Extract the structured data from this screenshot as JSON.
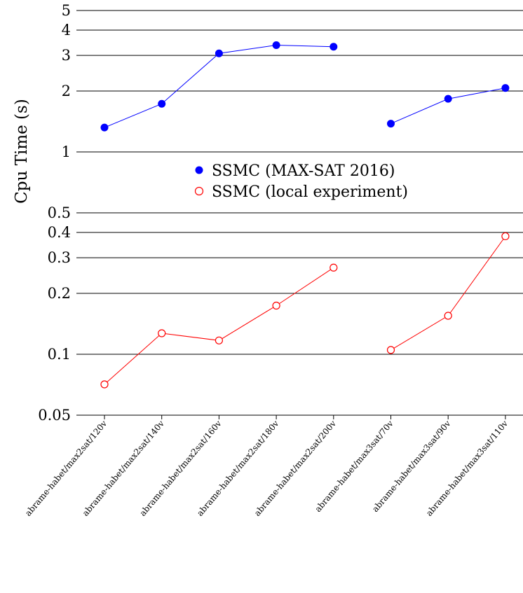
{
  "chart_data": {
    "type": "line",
    "title": "",
    "xlabel": "",
    "ylabel": "Cpu Time (s)",
    "yscale": "log",
    "ylim": [
      0.05,
      5
    ],
    "yticks": [
      {
        "value": 5,
        "label": "5"
      },
      {
        "value": 4,
        "label": "4"
      },
      {
        "value": 3,
        "label": "3"
      },
      {
        "value": 2,
        "label": "2"
      },
      {
        "value": 1,
        "label": "1"
      },
      {
        "value": 0.5,
        "label": "0.5"
      },
      {
        "value": 0.4,
        "label": "0.4"
      },
      {
        "value": 0.3,
        "label": "0.3"
      },
      {
        "value": 0.2,
        "label": "0.2"
      },
      {
        "value": 0.1,
        "label": "0.1"
      },
      {
        "value": 0.05,
        "label": "0.05"
      }
    ],
    "grid": "horizontal lines at y ticks",
    "categories": [
      "abrame-habet/max2sat/120v",
      "abrame-habet/max2sat/140v",
      "abrame-habet/max2sat/160v",
      "abrame-habet/max2sat/180v",
      "abrame-habet/max2sat/200v",
      "abrame-habet/max3sat/70v",
      "abrame-habet/max3sat/90v",
      "abrame-habet/max3sat/110v"
    ],
    "legend_position": "middle-right",
    "series": [
      {
        "name": "SSMC (MAX-SAT 2016)",
        "color": "#0000ff",
        "marker": "filled-circle",
        "segments": [
          [
            0,
            1,
            2,
            3,
            4
          ],
          [
            5,
            6,
            7
          ]
        ],
        "values": [
          1.32,
          1.73,
          3.07,
          3.37,
          3.31,
          1.38,
          1.83,
          2.07
        ]
      },
      {
        "name": "SSMC (local experiment)",
        "color": "#ff0000",
        "marker": "open-circle",
        "segments": [
          [
            0,
            1,
            2,
            3,
            4
          ],
          [
            5,
            6,
            7
          ]
        ],
        "values": [
          0.071,
          0.127,
          0.117,
          0.174,
          0.268,
          0.105,
          0.155,
          0.383
        ]
      }
    ]
  }
}
